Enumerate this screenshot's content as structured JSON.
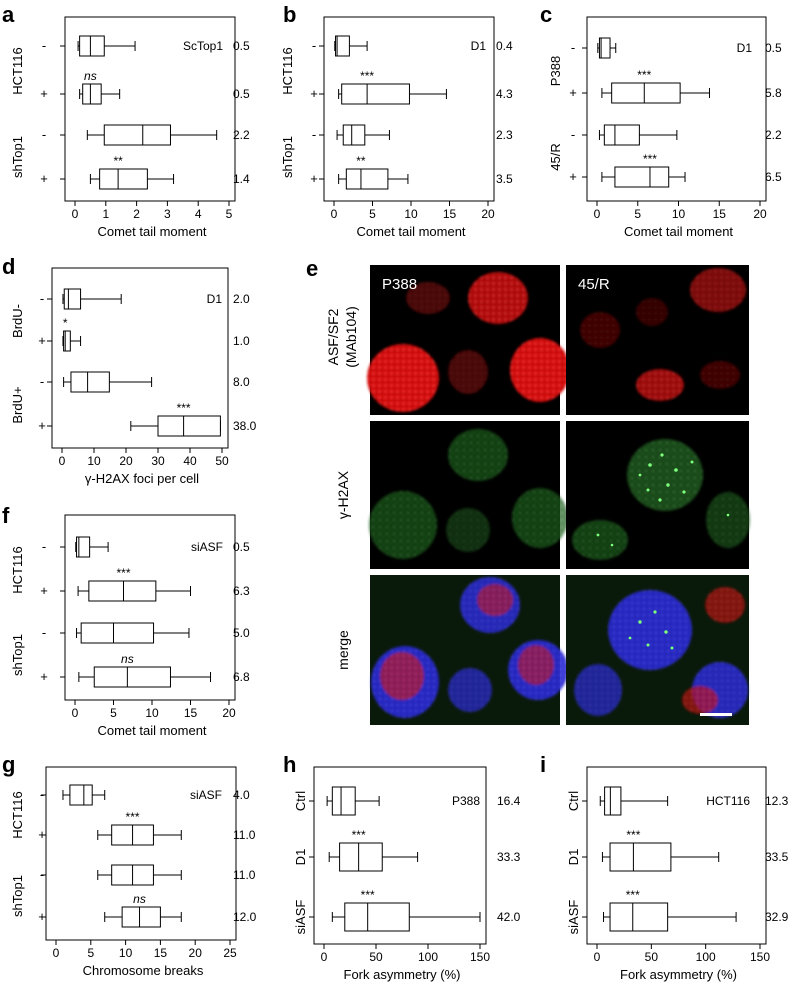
{
  "chart_data": [
    {
      "id": "a",
      "panel_label": "a",
      "type": "box",
      "title": "ScTop1",
      "xlabel": "Comet tail moment",
      "xlim": [
        0,
        5
      ],
      "xticks": [
        0,
        1,
        2,
        3,
        4,
        5
      ],
      "groups": [
        "HCT116",
        "shTop1"
      ],
      "rows": [
        {
          "sign": "-",
          "min": 0.1,
          "q1": 0.15,
          "median": 0.5,
          "q3": 0.95,
          "max": 1.95,
          "value": "0.5",
          "sig": ""
        },
        {
          "sign": "+",
          "min": 0.15,
          "q1": 0.25,
          "median": 0.5,
          "q3": 0.85,
          "max": 1.45,
          "value": "0.5",
          "sig": "ns"
        },
        {
          "sign": "-",
          "min": 0.4,
          "q1": 0.95,
          "median": 2.2,
          "q3": 3.1,
          "max": 4.6,
          "value": "2.2",
          "sig": ""
        },
        {
          "sign": "+",
          "min": 0.5,
          "q1": 0.8,
          "median": 1.4,
          "q3": 2.35,
          "max": 3.2,
          "value": "1.4",
          "sig": "**"
        }
      ]
    },
    {
      "id": "b",
      "panel_label": "b",
      "type": "box",
      "title": "D1",
      "xlabel": "Comet tail moment",
      "xlim": [
        0,
        20
      ],
      "xticks": [
        0,
        5,
        10,
        15,
        20
      ],
      "groups": [
        "HCT116",
        "shTop1"
      ],
      "rows": [
        {
          "sign": "-",
          "min": 0.1,
          "q1": 0.2,
          "median": 0.4,
          "q3": 2.0,
          "max": 4.3,
          "value": "0.4",
          "sig": ""
        },
        {
          "sign": "+",
          "min": 0.6,
          "q1": 1.0,
          "median": 4.3,
          "q3": 9.8,
          "max": 14.6,
          "value": "4.3",
          "sig": "***"
        },
        {
          "sign": "-",
          "min": 0.4,
          "q1": 1.2,
          "median": 2.3,
          "q3": 4.0,
          "max": 7.2,
          "value": "2.3",
          "sig": ""
        },
        {
          "sign": "+",
          "min": 0.6,
          "q1": 1.6,
          "median": 3.5,
          "q3": 7.0,
          "max": 9.6,
          "value": "3.5",
          "sig": "**"
        }
      ]
    },
    {
      "id": "c",
      "panel_label": "c",
      "type": "box",
      "title": "D1",
      "xlabel": "Comet tail moment",
      "xlim": [
        0,
        20
      ],
      "xticks": [
        0,
        5,
        10,
        15,
        20
      ],
      "groups": [
        "P388",
        "45/R"
      ],
      "rows": [
        {
          "sign": "-",
          "min": 0.1,
          "q1": 0.3,
          "median": 0.5,
          "q3": 1.6,
          "max": 2.3,
          "value": "0.5",
          "sig": ""
        },
        {
          "sign": "+",
          "min": 0.6,
          "q1": 1.8,
          "median": 5.8,
          "q3": 10.2,
          "max": 13.8,
          "value": "5.8",
          "sig": "***"
        },
        {
          "sign": "-",
          "min": 0.3,
          "q1": 0.9,
          "median": 2.2,
          "q3": 5.2,
          "max": 9.8,
          "value": "2.2",
          "sig": ""
        },
        {
          "sign": "+",
          "min": 0.6,
          "q1": 2.2,
          "median": 6.5,
          "q3": 8.8,
          "max": 10.8,
          "value": "6.5",
          "sig": "***"
        }
      ]
    },
    {
      "id": "d",
      "panel_label": "d",
      "type": "box",
      "title": "D1",
      "xlabel": "γ-H2AX foci per cell",
      "xlim": [
        0,
        50
      ],
      "xticks": [
        0,
        10,
        20,
        30,
        40,
        50
      ],
      "groups": [
        "BrdU-",
        "BrdU+"
      ],
      "rows": [
        {
          "sign": "-",
          "min": 0.3,
          "q1": 0.7,
          "median": 2.0,
          "q3": 5.8,
          "max": 18.5,
          "value": "2.0",
          "sig": ""
        },
        {
          "sign": "+",
          "min": 0.3,
          "q1": 0.5,
          "median": 1.0,
          "q3": 2.6,
          "max": 5.8,
          "value": "1.0",
          "sig": "*"
        },
        {
          "sign": "-",
          "min": 0.5,
          "q1": 2.8,
          "median": 8.0,
          "q3": 14.8,
          "max": 28.0,
          "value": "8.0",
          "sig": ""
        },
        {
          "sign": "+",
          "min": 21.5,
          "q1": 30.0,
          "median": 38.0,
          "q3": 49.5,
          "max": 49.5,
          "value": "38.0",
          "sig": "***"
        }
      ]
    },
    {
      "id": "f",
      "panel_label": "f",
      "type": "box",
      "title": "siASF",
      "xlabel": "Comet tail moment",
      "xlim": [
        0,
        20
      ],
      "xticks": [
        0,
        5,
        10,
        15,
        20
      ],
      "groups": [
        "HCT116",
        "shTop1"
      ],
      "rows": [
        {
          "sign": "-",
          "min": 0.1,
          "q1": 0.2,
          "median": 0.5,
          "q3": 1.9,
          "max": 4.3,
          "value": "0.5",
          "sig": ""
        },
        {
          "sign": "+",
          "min": 0.4,
          "q1": 1.8,
          "median": 6.3,
          "q3": 10.5,
          "max": 15.0,
          "value": "6.3",
          "sig": "***"
        },
        {
          "sign": "-",
          "min": 0.2,
          "q1": 0.8,
          "median": 5.0,
          "q3": 10.2,
          "max": 14.8,
          "value": "5.0",
          "sig": ""
        },
        {
          "sign": "+",
          "min": 0.5,
          "q1": 2.5,
          "median": 6.8,
          "q3": 12.4,
          "max": 17.6,
          "value": "6.8",
          "sig": "ns"
        }
      ]
    },
    {
      "id": "g",
      "panel_label": "g",
      "type": "box",
      "title": "siASF",
      "xlabel": "Chromosome breaks",
      "xlim": [
        0,
        25
      ],
      "xticks": [
        0,
        5,
        10,
        15,
        20,
        25
      ],
      "groups": [
        "HCT116",
        "shTop1"
      ],
      "rows": [
        {
          "sign": "-",
          "min": 1.0,
          "q1": 2.0,
          "median": 4.0,
          "q3": 5.2,
          "max": 7.0,
          "value": "4.0",
          "sig": ""
        },
        {
          "sign": "+",
          "min": 6.0,
          "q1": 8.0,
          "median": 11.0,
          "q3": 14.0,
          "max": 18.0,
          "value": "11.0",
          "sig": "***"
        },
        {
          "sign": "-",
          "min": 6.0,
          "q1": 8.0,
          "median": 11.0,
          "q3": 14.0,
          "max": 18.0,
          "value": "11.0",
          "sig": ""
        },
        {
          "sign": "+",
          "min": 7.0,
          "q1": 9.5,
          "median": 12.0,
          "q3": 15.0,
          "max": 18.0,
          "value": "12.0",
          "sig": "ns"
        }
      ]
    },
    {
      "id": "h",
      "panel_label": "h",
      "type": "box",
      "title": "P388",
      "xlabel": "Fork asymmetry (%)",
      "xlim": [
        0,
        150
      ],
      "xticks": [
        0,
        50,
        100,
        150
      ],
      "rows": [
        {
          "sign": "",
          "rowlabel": "Ctrl",
          "min": 3,
          "q1": 8,
          "median": 16.4,
          "q3": 30,
          "max": 53,
          "value": "16.4",
          "sig": ""
        },
        {
          "sign": "",
          "rowlabel": "D1",
          "min": 5,
          "q1": 15,
          "median": 33.3,
          "q3": 56,
          "max": 90,
          "value": "33.3",
          "sig": "***"
        },
        {
          "sign": "",
          "rowlabel": "siASF",
          "min": 8,
          "q1": 20,
          "median": 42.0,
          "q3": 82,
          "max": 150,
          "value": "42.0",
          "sig": "***"
        }
      ]
    },
    {
      "id": "i",
      "panel_label": "i",
      "type": "box",
      "title": "HCT116",
      "xlabel": "Fork asymmetry (%)",
      "xlim": [
        0,
        150
      ],
      "xticks": [
        0,
        50,
        100,
        150
      ],
      "rows": [
        {
          "sign": "",
          "rowlabel": "Ctrl",
          "min": 3,
          "q1": 7,
          "median": 12.3,
          "q3": 22,
          "max": 65,
          "value": "12.3",
          "sig": ""
        },
        {
          "sign": "",
          "rowlabel": "D1",
          "min": 5,
          "q1": 12,
          "median": 33.5,
          "q3": 68,
          "max": 112,
          "value": "33.5",
          "sig": "***"
        },
        {
          "sign": "",
          "rowlabel": "siASF",
          "min": 6,
          "q1": 12,
          "median": 32.9,
          "q3": 65,
          "max": 128,
          "value": "32.9",
          "sig": "***"
        }
      ]
    }
  ],
  "micrograph": {
    "panel_label": "e",
    "columns": [
      "P388",
      "45/R"
    ],
    "rows": [
      {
        "label": "ASF/SF2\n(MAb104)",
        "line1": "ASF/SF2",
        "line2": "(MAb104)",
        "stain": "red"
      },
      {
        "label": "γ-H2AX",
        "stain": "green"
      },
      {
        "label": "merge",
        "stain": "merge"
      }
    ]
  }
}
